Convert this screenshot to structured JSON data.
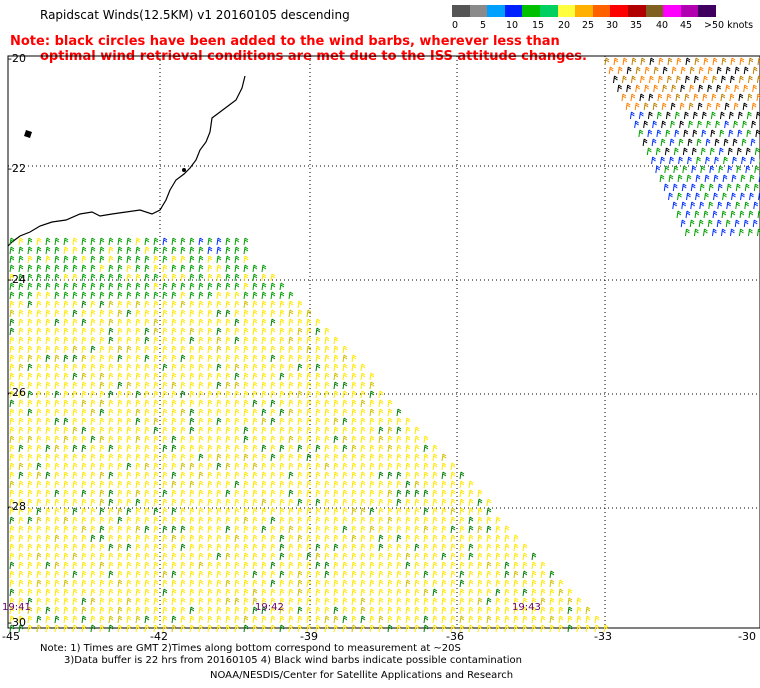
{
  "header": {
    "title": "Rapidscat Winds(12.5KM) v1 20160105 descending",
    "note_line1": "Note: black circles have been added to the wind barbs, wherever less than",
    "note_line2": "optimal wind retrieval conditions are met due to the ISS attitude changes."
  },
  "legend": {
    "colors": [
      "#555555",
      "#8a8a8a",
      "#00a0ff",
      "#0020ff",
      "#00c000",
      "#00d060",
      "#ffff40",
      "#ffb000",
      "#ff6000",
      "#ff0000",
      "#b00000",
      "#806020",
      "#ff00ff",
      "#b000b0",
      "#400060"
    ],
    "ticks": [
      "0",
      "5",
      "10",
      "15",
      "20",
      "25",
      "30",
      "35",
      "40",
      "45",
      ">50 knots"
    ]
  },
  "axes": {
    "lat_labels": [
      "-20",
      "-22",
      "-24",
      "-26",
      "-28",
      "-30"
    ],
    "lon_labels": [
      "-45",
      "-42",
      "-39",
      "-36",
      "-33",
      "-30"
    ]
  },
  "times": [
    "19:41",
    "19:42",
    "19:43"
  ],
  "footer": {
    "line1": "Note: 1) Times are GMT 2)Times along bottom correspond to measurement at ~20S",
    "line2": "3)Data buffer is 22 hrs from 20160105 4) Black wind barbs indicate possible contamination",
    "line3": "NOAA/NESDIS/Center for Satellite Applications and Research"
  }
}
